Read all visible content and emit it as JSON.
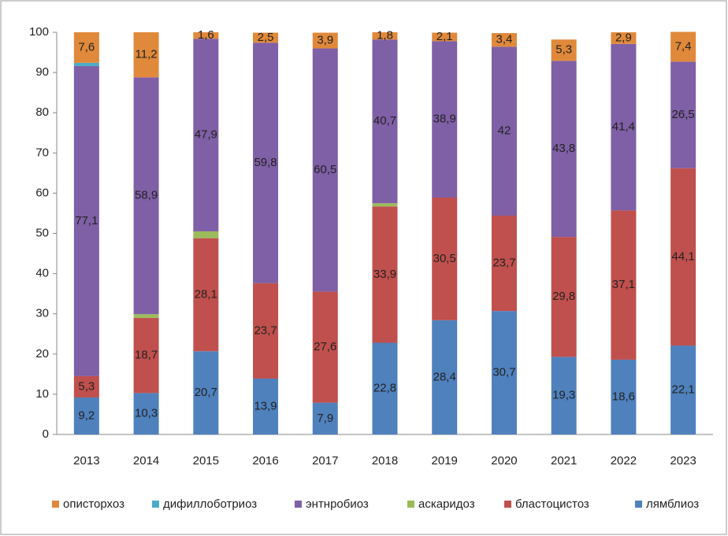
{
  "chart_data": {
    "type": "stacked_bar",
    "categories": [
      "2013",
      "2014",
      "2015",
      "2016",
      "2017",
      "2018",
      "2019",
      "2020",
      "2021",
      "2022",
      "2023"
    ],
    "ylim": [
      0,
      100
    ],
    "yticks": [
      0,
      10,
      20,
      30,
      40,
      50,
      60,
      70,
      80,
      90,
      100
    ],
    "grid": false,
    "legend": "bottom",
    "series": [
      {
        "name": "описторхоз",
        "color": "#e0893b",
        "values": [
          7.6,
          11.2,
          1.6,
          2.5,
          3.9,
          1.8,
          2.1,
          3.4,
          5.3,
          2.9,
          7.4
        ],
        "value_labels": [
          "7,6",
          "11,2",
          "1,6",
          "2,5",
          "3,9",
          "1,8",
          "2,1",
          "3,4",
          "5,3",
          "2,9",
          "7,4"
        ]
      },
      {
        "name": "дифиллоботриоз",
        "color": "#4bacc6",
        "values": [
          0.8,
          0,
          0,
          0,
          0,
          0,
          0,
          0,
          0,
          0,
          0
        ]
      },
      {
        "name": "энтнробиоз",
        "color": "#7f5fa5",
        "values": [
          77.1,
          58.9,
          47.9,
          59.8,
          60.5,
          40.7,
          38.9,
          42,
          43.8,
          41.4,
          26.5
        ],
        "value_labels": [
          "77,1",
          "58,9",
          "47,9",
          "59,8",
          "60,5",
          "40,7",
          "38,9",
          "42",
          "43,8",
          "41,4",
          "26,5"
        ]
      },
      {
        "name": "аскаридоз",
        "color": "#9bbb59",
        "values": [
          0,
          0.9,
          1.7,
          0,
          0,
          0.8,
          0,
          0,
          0,
          0,
          0
        ]
      },
      {
        "name": "бластоцистоз",
        "color": "#c0504d",
        "values": [
          5.3,
          18.7,
          28.1,
          23.7,
          27.6,
          33.9,
          30.5,
          23.7,
          29.8,
          37.1,
          44.1
        ],
        "value_labels": [
          "5,3",
          "18,7",
          "28,1",
          "23,7",
          "27,6",
          "33,9",
          "30,5",
          "23,7",
          "29,8",
          "37,1",
          "44,1"
        ]
      },
      {
        "name": "лямблиоз",
        "color": "#4f81bd",
        "values": [
          9.2,
          10.3,
          20.7,
          13.9,
          7.9,
          22.8,
          28.4,
          30.7,
          19.3,
          18.6,
          22.1
        ],
        "value_labels": [
          "9,2",
          "10,3",
          "20,7",
          "13,9",
          "7,9",
          "22,8",
          "28,4",
          "30,7",
          "19,3",
          "18,6",
          "22,1"
        ]
      }
    ]
  }
}
